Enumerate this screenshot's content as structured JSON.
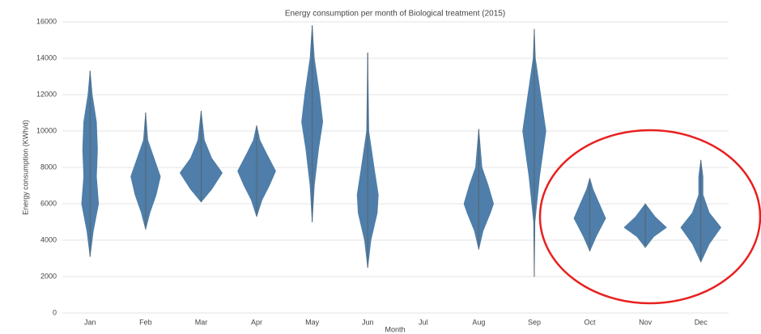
{
  "chart_data": {
    "type": "violin",
    "title": "Energy consumption per month of Biological treatment (2015)",
    "x_label": "Month",
    "y_label": "Energy consumption (KWh/d)",
    "categories": [
      "Jan",
      "Feb",
      "Mar",
      "Apr",
      "May",
      "Jun",
      "Jul",
      "Aug",
      "Sep",
      "Oct",
      "Nov",
      "Dec"
    ],
    "color": "#4e7ea9",
    "ylim": [
      0,
      16000
    ],
    "yticks": [
      0,
      2000,
      4000,
      6000,
      8000,
      10000,
      12000,
      14000,
      16000
    ],
    "grid": true,
    "violins": [
      {
        "y": [
          3100,
          4500,
          6000,
          7500,
          9000,
          10500,
          12000,
          13300
        ],
        "width": [
          0,
          0.15,
          0.4,
          0.3,
          0.35,
          0.3,
          0.1,
          0
        ]
      },
      {
        "y": [
          4600,
          5500,
          6500,
          7500,
          8500,
          9500,
          11000
        ],
        "width": [
          0,
          0.2,
          0.5,
          0.7,
          0.4,
          0.1,
          0
        ]
      },
      {
        "y": [
          6100,
          6800,
          7700,
          8500,
          9500,
          11100
        ],
        "width": [
          0,
          0.5,
          1,
          0.5,
          0.15,
          0
        ]
      },
      {
        "y": [
          5300,
          6200,
          7000,
          7800,
          8800,
          9500,
          10300
        ],
        "width": [
          0,
          0.25,
          0.6,
          0.9,
          0.45,
          0.15,
          0
        ]
      },
      {
        "y": [
          5000,
          7000,
          9000,
          10500,
          12000,
          14000,
          15800
        ],
        "width": [
          0,
          0.1,
          0.3,
          0.5,
          0.35,
          0.1,
          0
        ]
      },
      {
        "y": [
          2500,
          4000,
          5500,
          6500,
          8000,
          10000,
          14300
        ],
        "width": [
          0,
          0.15,
          0.45,
          0.5,
          0.3,
          0.05,
          0
        ]
      },
      null,
      {
        "y": [
          3500,
          4500,
          5500,
          6000,
          7000,
          8000,
          10100
        ],
        "width": [
          0,
          0.2,
          0.55,
          0.7,
          0.45,
          0.15,
          0
        ]
      },
      {
        "y": [
          2000,
          5000,
          7500,
          10000,
          12000,
          14000,
          15600
        ],
        "width": [
          0,
          0.03,
          0.25,
          0.55,
          0.3,
          0.05,
          0
        ]
      },
      {
        "y": [
          3400,
          4200,
          5200,
          6000,
          6800,
          7400
        ],
        "width": [
          0,
          0.3,
          0.75,
          0.45,
          0.15,
          0
        ]
      },
      {
        "y": [
          3600,
          4200,
          4700,
          5300,
          6000
        ],
        "width": [
          0,
          0.4,
          1,
          0.45,
          0
        ]
      },
      {
        "y": [
          2800,
          3800,
          4700,
          5500,
          6500,
          7500,
          8400
        ],
        "width": [
          0,
          0.4,
          0.95,
          0.4,
          0.1,
          0.1,
          0
        ]
      }
    ]
  }
}
